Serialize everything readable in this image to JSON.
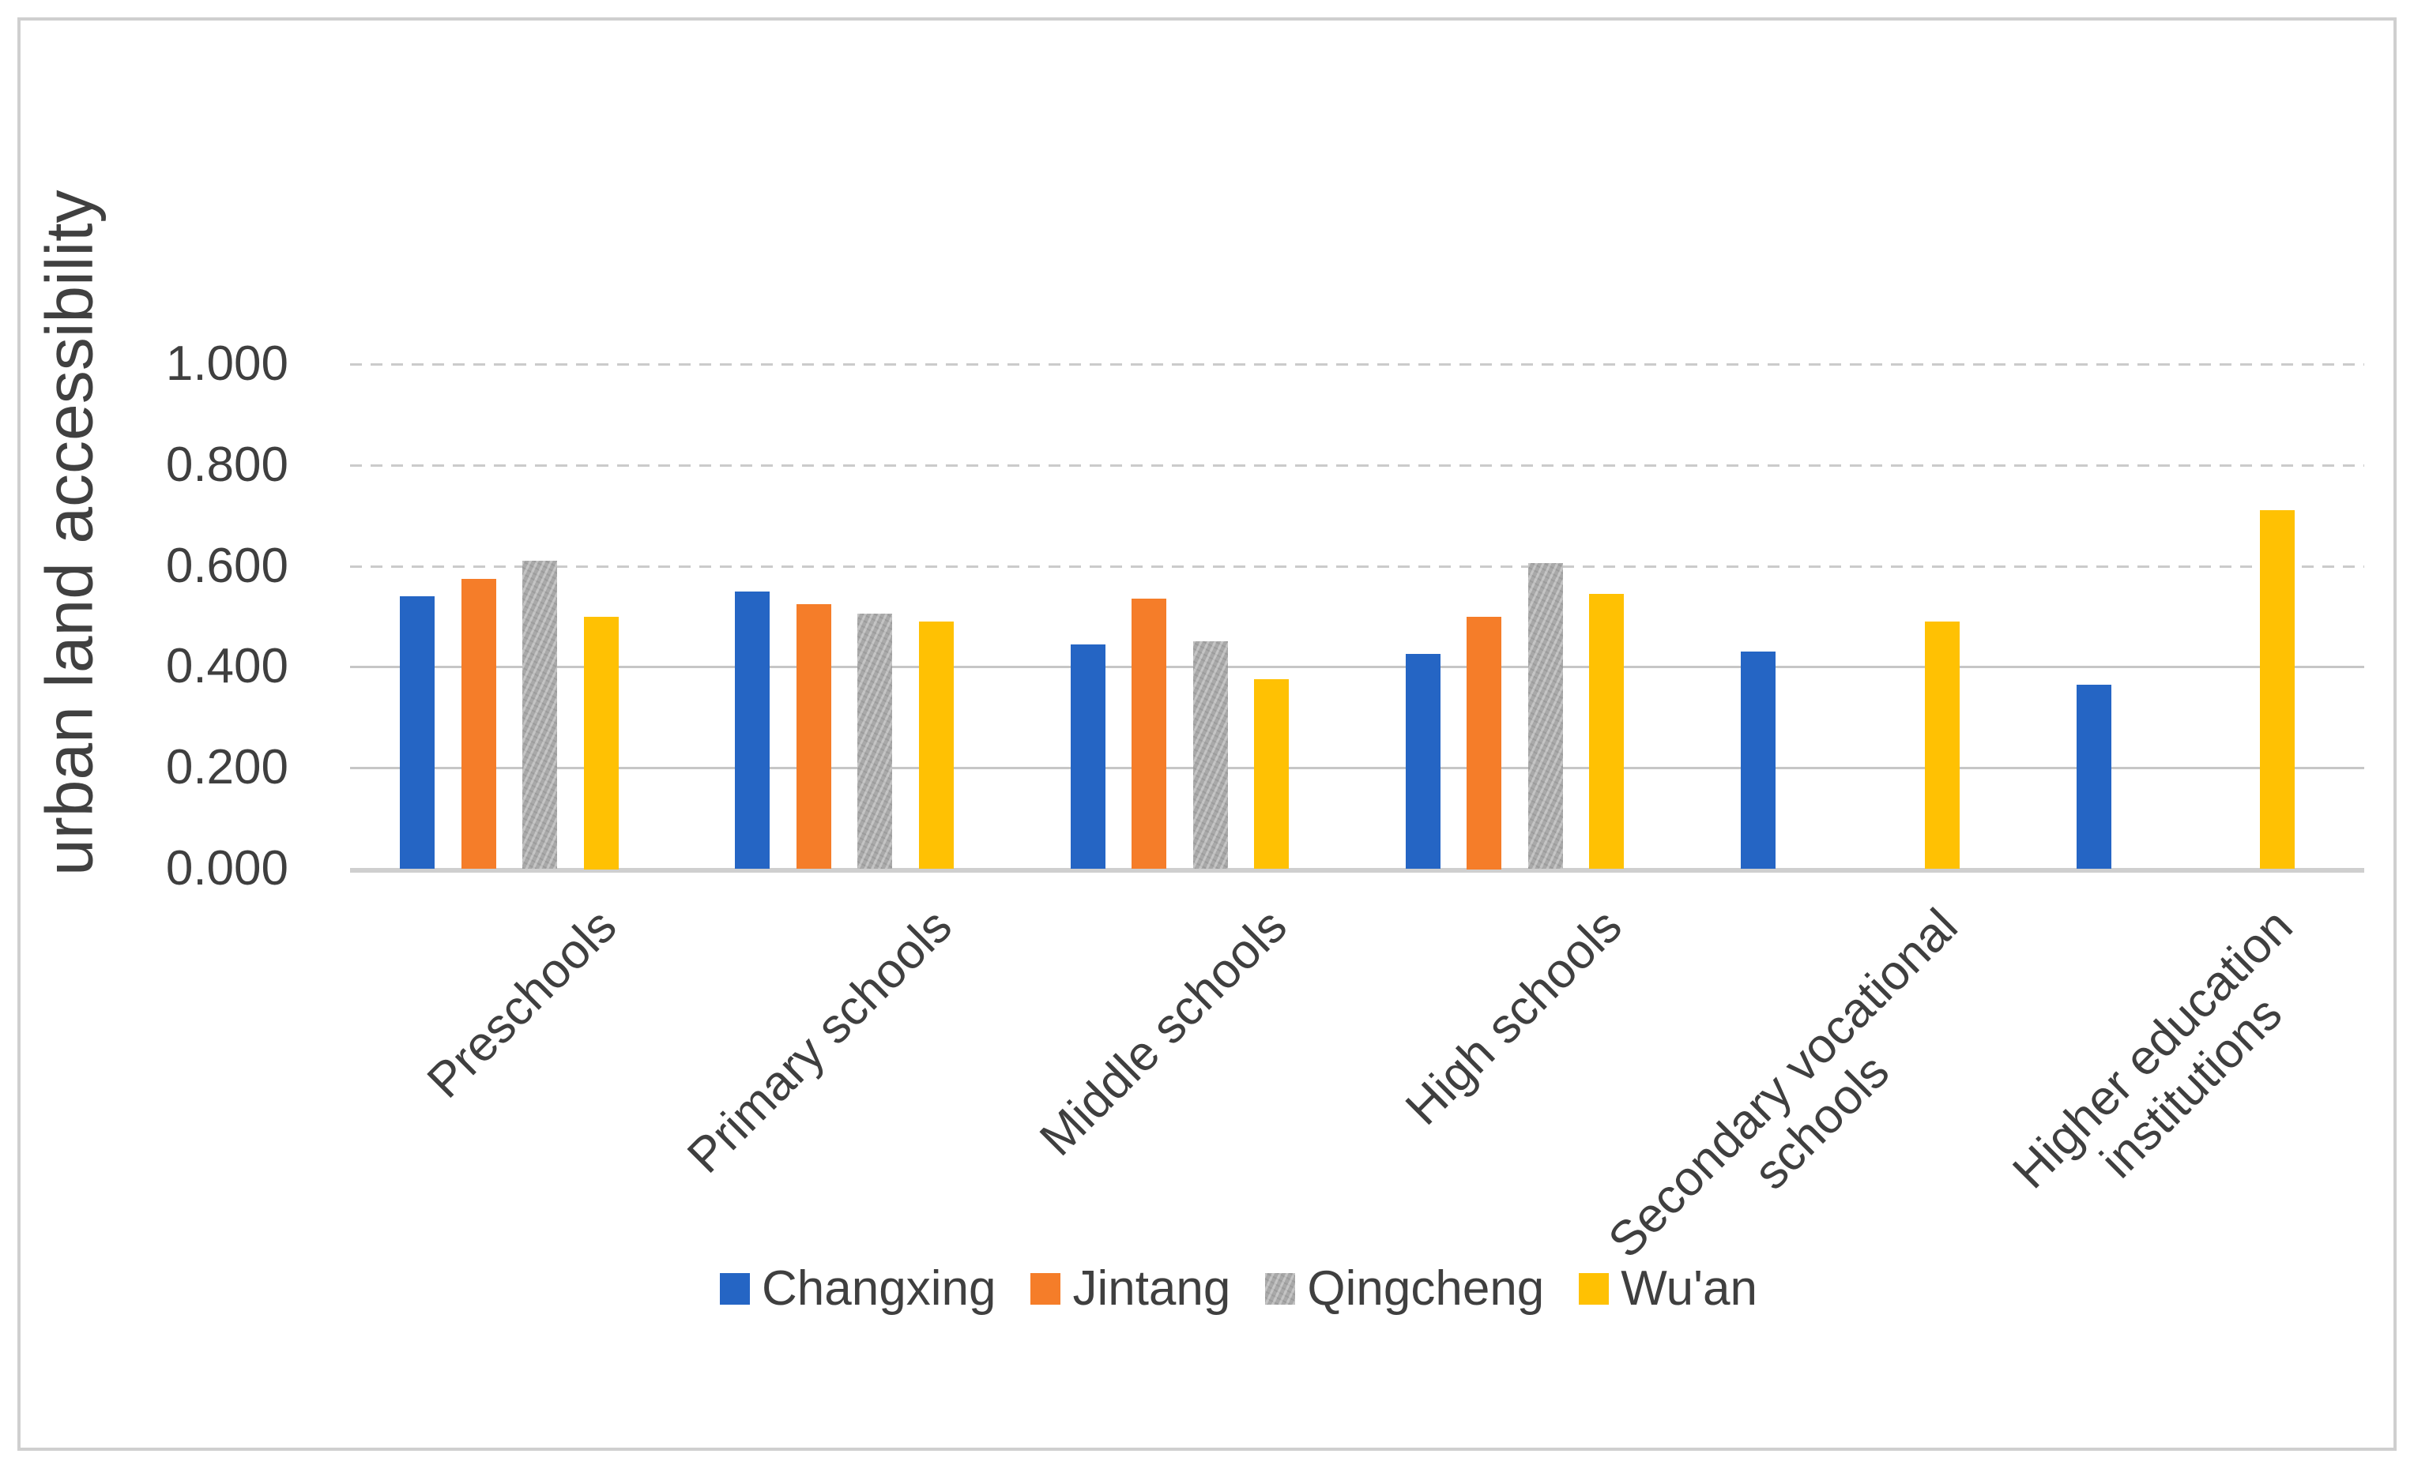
{
  "figure": {
    "background_color": "#ffffff",
    "border_color": "#cfcfcf"
  },
  "chart_data": {
    "type": "bar",
    "title": "",
    "xlabel": "",
    "ylabel": "urban land accessibility",
    "categories": [
      "Preschools",
      "Primary schools",
      "Middle schools",
      "High schools",
      "Secondary vocational\nschools",
      "Higher education\ninstitutions"
    ],
    "series": [
      {
        "name": "Changxing",
        "color": "#2565c4",
        "pattern": false,
        "values": [
          0.54,
          0.55,
          0.445,
          0.425,
          0.43,
          0.365
        ]
      },
      {
        "name": "Jintang",
        "color": "#f57d29",
        "pattern": false,
        "values": [
          0.575,
          0.525,
          0.535,
          0.5,
          null,
          null
        ]
      },
      {
        "name": "Qingcheng",
        "color": "#a9a9a9",
        "pattern": true,
        "values": [
          0.61,
          0.505,
          0.45,
          0.605,
          null,
          null
        ]
      },
      {
        "name": "Wu'an",
        "color": "#ffc103",
        "pattern": false,
        "values": [
          0.5,
          0.49,
          0.375,
          0.545,
          0.49,
          0.71
        ]
      }
    ],
    "ylim": [
      0.0,
      1.0
    ],
    "yticks": [
      {
        "value": 1.0,
        "label": "1.000"
      },
      {
        "value": 0.8,
        "label": "0.800"
      },
      {
        "value": 0.6,
        "label": "0.600"
      },
      {
        "value": 0.4,
        "label": "0.400"
      },
      {
        "value": 0.2,
        "label": "0.200"
      },
      {
        "value": 0.0,
        "label": "0.000"
      }
    ],
    "grid": true,
    "legend_position": "bottom"
  }
}
